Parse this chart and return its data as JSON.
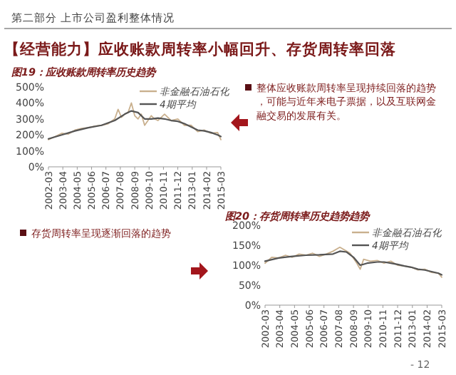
{
  "chart_data": [
    {
      "type": "line",
      "title": "图19：应收账款周转率历史趋势",
      "legend": "top",
      "xlim": [
        "2002-03",
        "2015-03"
      ],
      "xticks": [
        "2002-03",
        "2003-04",
        "2004-05",
        "2005-06",
        "2006-07",
        "2007-08",
        "2008-09",
        "2009-10",
        "2010-11",
        "2011-12",
        "2013-01",
        "2014-02",
        "2015-03"
      ],
      "ylim": [
        0,
        500
      ],
      "yticks": [
        {
          "value": 0,
          "label": "0%"
        },
        {
          "value": 100,
          "label": "100%"
        },
        {
          "value": 200,
          "label": "200%"
        },
        {
          "value": 300,
          "label": "300%"
        },
        {
          "value": 400,
          "label": "400%"
        },
        {
          "value": 500,
          "label": "500%"
        }
      ],
      "annotations": [
        "第二部分  上市公司盈利整体情况",
        "【经营能力】应收账款周转率小幅回升、存货周转率回落",
        "整体应收账款周转率呈现持续回落的趋势，可能与近年来电子票据，以及互联网金融交易的发展有关。"
      ],
      "series": [
        {
          "name": "非金融石油石化",
          "color": "#c9b08e",
          "x": [
            "2002-03",
            "2002-09",
            "2003-03",
            "2003-09",
            "2004-03",
            "2004-09",
            "2005-03",
            "2005-09",
            "2006-03",
            "2006-09",
            "2007-03",
            "2007-06",
            "2007-09",
            "2007-12",
            "2008-03",
            "2008-06",
            "2008-09",
            "2008-12",
            "2009-03",
            "2009-06",
            "2009-12",
            "2010-03",
            "2010-06",
            "2010-12",
            "2011-06",
            "2011-12",
            "2012-06",
            "2012-12",
            "2013-06",
            "2013-12",
            "2014-06",
            "2014-12",
            "2015-03"
          ],
          "values": [
            170,
            190,
            210,
            205,
            230,
            240,
            245,
            255,
            260,
            270,
            300,
            360,
            310,
            330,
            340,
            400,
            320,
            300,
            330,
            260,
            320,
            300,
            290,
            330,
            290,
            300,
            260,
            260,
            220,
            230,
            210,
            215,
            170
          ]
        },
        {
          "name": "4期平均",
          "color": "#555555",
          "x": [
            "2002-03",
            "2003-03",
            "2004-03",
            "2005-03",
            "2006-03",
            "2007-03",
            "2007-12",
            "2008-06",
            "2008-12",
            "2009-06",
            "2009-12",
            "2010-06",
            "2010-12",
            "2011-06",
            "2011-12",
            "2012-06",
            "2012-12",
            "2013-06",
            "2013-12",
            "2014-06",
            "2014-12",
            "2015-03"
          ],
          "values": [
            175,
            200,
            225,
            245,
            260,
            290,
            330,
            350,
            340,
            300,
            300,
            305,
            300,
            290,
            285,
            270,
            250,
            230,
            225,
            215,
            200,
            190
          ]
        }
      ]
    },
    {
      "type": "line",
      "title": "图20：存货周转率历史趋势趋势",
      "legend": "top",
      "xlim": [
        "2002-03",
        "2015-03"
      ],
      "xticks": [
        "2002-03",
        "2003-04",
        "2004-05",
        "2005-06",
        "2006-07",
        "2007-08",
        "2008-09",
        "2009-10",
        "2010-11",
        "2011-12",
        "2013-01",
        "2014-02",
        "2015-03"
      ],
      "ylim": [
        0,
        200
      ],
      "yticks": [
        {
          "value": 0,
          "label": "0%"
        },
        {
          "value": 50,
          "label": "50%"
        },
        {
          "value": 100,
          "label": "100%"
        },
        {
          "value": 150,
          "label": "150%"
        },
        {
          "value": 200,
          "label": "200%"
        }
      ],
      "annotations": [
        "存货周转率呈现逐渐回落的趋势",
        "- 12 -"
      ],
      "series": [
        {
          "name": "非金融石油石化",
          "color": "#c9b08e",
          "x": [
            "2002-03",
            "2002-09",
            "2003-03",
            "2003-09",
            "2004-03",
            "2004-09",
            "2005-03",
            "2005-09",
            "2006-03",
            "2006-09",
            "2007-03",
            "2007-09",
            "2008-03",
            "2008-06",
            "2008-12",
            "2009-03",
            "2009-06",
            "2009-12",
            "2010-06",
            "2010-12",
            "2011-06",
            "2011-12",
            "2012-06",
            "2012-12",
            "2013-06",
            "2013-12",
            "2014-06",
            "2014-12",
            "2015-03"
          ],
          "values": [
            105,
            120,
            118,
            125,
            120,
            128,
            125,
            130,
            122,
            128,
            135,
            145,
            135,
            130,
            105,
            90,
            115,
            110,
            112,
            105,
            110,
            100,
            98,
            95,
            88,
            90,
            82,
            80,
            70
          ]
        },
        {
          "name": "4期平均",
          "color": "#555555",
          "x": [
            "2002-03",
            "2003-03",
            "2004-03",
            "2005-03",
            "2006-03",
            "2007-03",
            "2007-09",
            "2008-03",
            "2008-09",
            "2009-03",
            "2009-09",
            "2010-06",
            "2010-12",
            "2011-06",
            "2011-12",
            "2012-06",
            "2012-12",
            "2013-06",
            "2013-12",
            "2014-06",
            "2014-12",
            "2015-03"
          ],
          "values": [
            110,
            118,
            122,
            125,
            126,
            128,
            135,
            133,
            120,
            100,
            105,
            108,
            108,
            105,
            102,
            98,
            95,
            90,
            88,
            84,
            80,
            76
          ]
        }
      ]
    }
  ]
}
